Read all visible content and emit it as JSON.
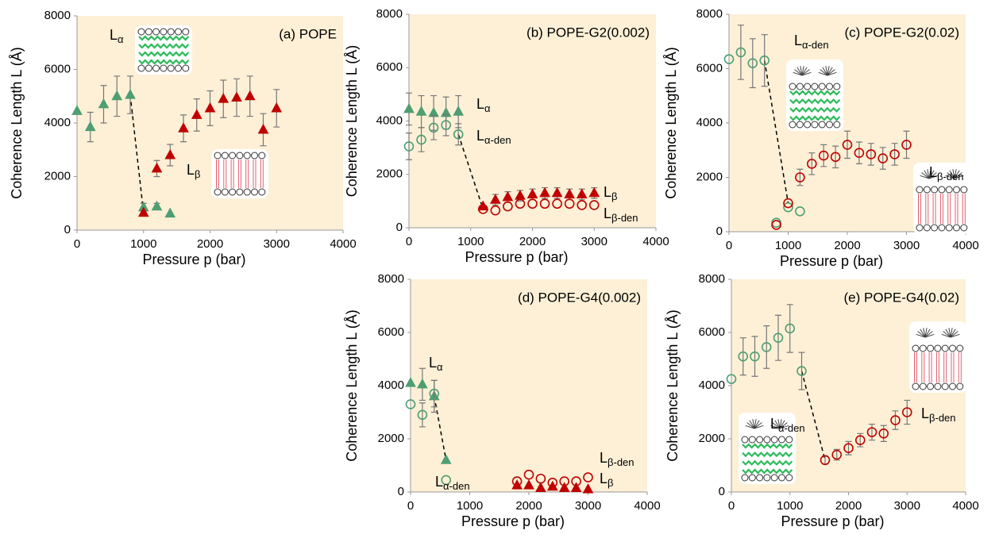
{
  "chart_data": [
    {
      "type": "scatter",
      "title": "(a) POPE",
      "xlabel": "Pressure p (bar)",
      "ylabel": "Coherence Length L (Å)",
      "xlim": [
        0,
        4000
      ],
      "ylim": [
        0,
        8000
      ],
      "xticks": [
        0,
        1000,
        2000,
        3000,
        4000
      ],
      "yticks": [
        0,
        2000,
        4000,
        6000,
        8000
      ],
      "annotations": [
        {
          "main": "L",
          "sub": "α"
        },
        {
          "main": "L",
          "sub": "β"
        }
      ],
      "series": [
        {
          "marker": "triangle",
          "filled": true,
          "color": "#4e9e72",
          "x": [
            0,
            200,
            400,
            600,
            800,
            1000,
            1200,
            1400
          ],
          "values": [
            4450,
            3850,
            4700,
            5000,
            5050,
            850,
            880,
            620
          ],
          "errors": [
            null,
            550,
            700,
            750,
            700,
            150,
            120,
            null
          ]
        },
        {
          "marker": "triangle",
          "filled": true,
          "color": "#c00000",
          "x": [
            1000,
            1200,
            1400,
            1600,
            1800,
            2000,
            2200,
            2400,
            2600,
            2800,
            3000
          ],
          "values": [
            650,
            2300,
            2800,
            3800,
            4300,
            4550,
            4900,
            4950,
            5000,
            3750,
            4550
          ],
          "errors": [
            null,
            300,
            400,
            500,
            600,
            650,
            700,
            700,
            750,
            600,
            700
          ]
        }
      ]
    },
    {
      "type": "scatter",
      "title": "(b) POPE-G2(0.002)",
      "xlabel": "Pressure p (bar)",
      "ylabel": "Coherence Length L (Å)",
      "xlim": [
        0,
        4000
      ],
      "ylim": [
        0,
        8000
      ],
      "xticks": [
        0,
        1000,
        2000,
        3000,
        4000
      ],
      "yticks": [
        0,
        2000,
        4000,
        6000,
        8000
      ],
      "annotations": [
        {
          "main": "L",
          "sub": "α"
        },
        {
          "main": "L",
          "sub": "α-den"
        },
        {
          "main": "L",
          "sub": "β"
        },
        {
          "main": "L",
          "sub": "β-den"
        }
      ],
      "series": [
        {
          "marker": "triangle",
          "filled": true,
          "color": "#4e9e72",
          "x": [
            0,
            200,
            400,
            600,
            800
          ],
          "values": [
            4450,
            4350,
            4300,
            4300,
            4350
          ],
          "errors": [
            600,
            600,
            650,
            600,
            600
          ]
        },
        {
          "marker": "circle",
          "filled": false,
          "color": "#4e9e72",
          "x": [
            0,
            200,
            400,
            600,
            800
          ],
          "values": [
            3050,
            3300,
            3750,
            3850,
            3500
          ],
          "errors": [
            500,
            450,
            450,
            400,
            400
          ]
        },
        {
          "marker": "triangle",
          "filled": true,
          "color": "#c00000",
          "x": [
            1200,
            1400,
            1600,
            1800,
            2000,
            2200,
            2400,
            2600,
            2800,
            3000
          ],
          "values": [
            800,
            1050,
            1150,
            1200,
            1250,
            1300,
            1300,
            1250,
            1250,
            1300
          ],
          "errors": [
            null,
            200,
            200,
            200,
            200,
            200,
            200,
            200,
            200,
            200
          ]
        },
        {
          "marker": "circle",
          "filled": false,
          "color": "#c00000",
          "x": [
            1200,
            1400,
            1600,
            1800,
            2000,
            2200,
            2400,
            2600,
            2800,
            3000
          ],
          "values": [
            700,
            650,
            800,
            900,
            900,
            900,
            900,
            900,
            850,
            850
          ],
          "errors": [
            null,
            null,
            null,
            null,
            null,
            null,
            null,
            null,
            null,
            null
          ]
        }
      ]
    },
    {
      "type": "scatter",
      "title": "(c) POPE-G2(0.02)",
      "xlabel": "Pressure p (bar)",
      "ylabel": "Coherence Length L (Å)",
      "xlim": [
        0,
        4000
      ],
      "ylim": [
        0,
        8000
      ],
      "xticks": [
        0,
        1000,
        2000,
        3000,
        4000
      ],
      "yticks": [
        0,
        2000,
        4000,
        6000,
        8000
      ],
      "annotations": [
        {
          "main": "L",
          "sub": "α-den"
        },
        {
          "main": "L",
          "sub": "β-den"
        }
      ],
      "series": [
        {
          "marker": "circle",
          "filled": false,
          "color": "#4e9e72",
          "x": [
            0,
            200,
            400,
            600,
            800,
            1000,
            1200
          ],
          "values": [
            6350,
            6600,
            6200,
            6300,
            330,
            900,
            750
          ],
          "errors": [
            null,
            1000,
            900,
            950,
            null,
            null,
            null
          ]
        },
        {
          "marker": "circle",
          "filled": false,
          "color": "#c00000",
          "x": [
            800,
            1000,
            1200,
            1400,
            1600,
            1800,
            2000,
            2200,
            2400,
            2600,
            2800,
            3000
          ],
          "values": [
            250,
            1050,
            2000,
            2500,
            2800,
            2750,
            3200,
            2900,
            2850,
            2700,
            2850,
            3200
          ],
          "errors": [
            null,
            null,
            300,
            400,
            400,
            400,
            500,
            400,
            400,
            400,
            400,
            500
          ]
        }
      ]
    },
    {
      "type": "scatter",
      "title": "(d) POPE-G4(0.002)",
      "xlabel": "Pressure p (bar)",
      "ylabel": "Coherence Length L (Å)",
      "xlim": [
        0,
        4000
      ],
      "ylim": [
        0,
        8000
      ],
      "xticks": [
        0,
        1000,
        2000,
        3000,
        4000
      ],
      "yticks": [
        0,
        2000,
        4000,
        6000,
        8000
      ],
      "annotations": [
        {
          "main": "L",
          "sub": "α"
        },
        {
          "main": "L",
          "sub": "α-den"
        },
        {
          "main": "L",
          "sub": "β-den"
        },
        {
          "main": "L",
          "sub": "β"
        }
      ],
      "series": [
        {
          "marker": "triangle",
          "filled": true,
          "color": "#4e9e72",
          "x": [
            0,
            200,
            400,
            600
          ],
          "values": [
            4100,
            4050,
            3600,
            1200
          ],
          "errors": [
            null,
            600,
            600,
            null
          ]
        },
        {
          "marker": "circle",
          "filled": false,
          "color": "#4e9e72",
          "x": [
            0,
            200,
            400,
            600
          ],
          "values": [
            3300,
            2900,
            3700,
            450
          ],
          "errors": [
            null,
            450,
            500,
            null
          ]
        },
        {
          "marker": "circle",
          "filled": false,
          "color": "#c00000",
          "x": [
            1800,
            2000,
            2200,
            2400,
            2600,
            2800,
            3000
          ],
          "values": [
            400,
            650,
            500,
            350,
            400,
            400,
            550
          ],
          "errors": [
            null,
            null,
            null,
            null,
            null,
            null,
            null
          ]
        },
        {
          "marker": "triangle",
          "filled": true,
          "color": "#c00000",
          "x": [
            1800,
            2000,
            2200,
            2400,
            2600,
            2800,
            3000
          ],
          "values": [
            250,
            250,
            150,
            200,
            150,
            150,
            100
          ],
          "errors": [
            null,
            null,
            null,
            null,
            null,
            null,
            null
          ]
        }
      ]
    },
    {
      "type": "scatter",
      "title": "(e) POPE-G4(0.02)",
      "xlabel": "Pressure p (bar)",
      "ylabel": "Coherence Length L (Å)",
      "xlim": [
        0,
        4000
      ],
      "ylim": [
        0,
        8000
      ],
      "xticks": [
        0,
        1000,
        2000,
        3000,
        4000
      ],
      "yticks": [
        0,
        2000,
        4000,
        6000,
        8000
      ],
      "annotations": [
        {
          "main": "L",
          "sub": "α-den"
        },
        {
          "main": "L",
          "sub": "β-den"
        }
      ],
      "series": [
        {
          "marker": "circle",
          "filled": false,
          "color": "#4e9e72",
          "x": [
            0,
            200,
            400,
            600,
            800,
            1000,
            1200
          ],
          "values": [
            4250,
            5100,
            5100,
            5450,
            5800,
            6150,
            4550
          ],
          "errors": [
            null,
            700,
            750,
            800,
            850,
            900,
            700
          ]
        },
        {
          "marker": "circle",
          "filled": false,
          "color": "#c00000",
          "x": [
            1600,
            1800,
            2000,
            2200,
            2400,
            2600,
            2800,
            3000
          ],
          "values": [
            1200,
            1400,
            1650,
            1950,
            2250,
            2200,
            2700,
            3000
          ],
          "errors": [
            150,
            200,
            250,
            250,
            300,
            300,
            350,
            450
          ]
        }
      ]
    }
  ]
}
